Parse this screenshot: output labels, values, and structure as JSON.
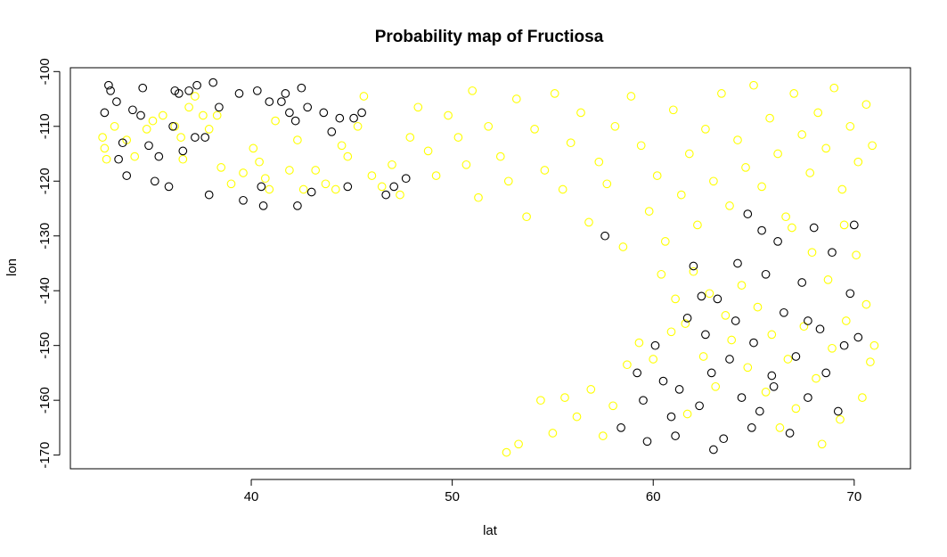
{
  "chart_data": {
    "type": "scatter",
    "title": "Probability map of Fructiosa",
    "xlabel": "lat",
    "ylabel": "lon",
    "xlim": [
      31.0,
      72.8
    ],
    "ylim": [
      -172.5,
      -99.3
    ],
    "xticks": [
      40,
      50,
      60,
      70
    ],
    "yticks": [
      -100,
      -110,
      -120,
      -130,
      -140,
      -150,
      -160,
      -170
    ],
    "grid": false,
    "marker": "open-circle",
    "series": [
      {
        "color": "#ffff00",
        "points": [
          [
            32.6,
            -112.0
          ],
          [
            32.7,
            -114.0
          ],
          [
            32.8,
            -116.0
          ],
          [
            33.2,
            -110.0
          ],
          [
            33.8,
            -112.5
          ],
          [
            34.2,
            -115.5
          ],
          [
            34.8,
            -110.5
          ],
          [
            35.1,
            -109.0
          ],
          [
            35.6,
            -108.0
          ],
          [
            36.2,
            -110.0
          ],
          [
            36.5,
            -112.0
          ],
          [
            36.6,
            -116.0
          ],
          [
            36.9,
            -106.5
          ],
          [
            37.2,
            -104.5
          ],
          [
            37.6,
            -108.0
          ],
          [
            37.9,
            -110.5
          ],
          [
            38.3,
            -108.0
          ],
          [
            38.5,
            -117.5
          ],
          [
            39.0,
            -120.5
          ],
          [
            39.6,
            -118.5
          ],
          [
            40.1,
            -114.0
          ],
          [
            40.4,
            -116.5
          ],
          [
            40.7,
            -119.5
          ],
          [
            40.9,
            -121.5
          ],
          [
            41.2,
            -109.0
          ],
          [
            41.9,
            -118.0
          ],
          [
            42.3,
            -112.5
          ],
          [
            42.6,
            -121.5
          ],
          [
            43.2,
            -118.0
          ],
          [
            43.7,
            -120.5
          ],
          [
            44.2,
            -121.5
          ],
          [
            44.5,
            -113.5
          ],
          [
            44.8,
            -115.5
          ],
          [
            45.3,
            -110.0
          ],
          [
            45.6,
            -104.5
          ],
          [
            46.0,
            -119.0
          ],
          [
            46.5,
            -121.0
          ],
          [
            47.0,
            -117.0
          ],
          [
            47.4,
            -122.5
          ],
          [
            47.9,
            -112.0
          ],
          [
            48.3,
            -106.5
          ],
          [
            48.8,
            -114.5
          ],
          [
            49.2,
            -119.0
          ],
          [
            49.8,
            -108.0
          ],
          [
            50.3,
            -112.0
          ],
          [
            50.7,
            -117.0
          ],
          [
            51.0,
            -103.5
          ],
          [
            51.3,
            -123.0
          ],
          [
            51.8,
            -110.0
          ],
          [
            52.4,
            -115.5
          ],
          [
            52.8,
            -120.0
          ],
          [
            53.2,
            -105.0
          ],
          [
            53.7,
            -126.5
          ],
          [
            54.1,
            -110.5
          ],
          [
            54.6,
            -118.0
          ],
          [
            55.1,
            -104.0
          ],
          [
            55.5,
            -121.5
          ],
          [
            55.9,
            -113.0
          ],
          [
            56.4,
            -107.5
          ],
          [
            56.8,
            -127.5
          ],
          [
            57.3,
            -116.5
          ],
          [
            57.7,
            -120.5
          ],
          [
            58.1,
            -110.0
          ],
          [
            58.5,
            -132.0
          ],
          [
            58.9,
            -104.5
          ],
          [
            59.4,
            -113.5
          ],
          [
            59.8,
            -125.5
          ],
          [
            60.2,
            -119.0
          ],
          [
            60.6,
            -131.0
          ],
          [
            61.0,
            -107.0
          ],
          [
            61.4,
            -122.5
          ],
          [
            61.8,
            -115.0
          ],
          [
            62.2,
            -128.0
          ],
          [
            62.6,
            -110.5
          ],
          [
            63.0,
            -120.0
          ],
          [
            63.4,
            -104.0
          ],
          [
            63.8,
            -124.5
          ],
          [
            64.2,
            -112.5
          ],
          [
            64.6,
            -117.5
          ],
          [
            65.0,
            -102.5
          ],
          [
            65.4,
            -121.0
          ],
          [
            65.8,
            -108.5
          ],
          [
            66.2,
            -115.0
          ],
          [
            66.6,
            -126.5
          ],
          [
            67.0,
            -104.0
          ],
          [
            67.4,
            -111.5
          ],
          [
            67.8,
            -118.5
          ],
          [
            68.2,
            -107.5
          ],
          [
            68.6,
            -114.0
          ],
          [
            69.0,
            -103.0
          ],
          [
            69.4,
            -121.5
          ],
          [
            69.8,
            -110.0
          ],
          [
            70.2,
            -116.5
          ],
          [
            70.6,
            -106.0
          ],
          [
            70.9,
            -113.5
          ],
          [
            60.4,
            -137.0
          ],
          [
            61.1,
            -141.5
          ],
          [
            61.6,
            -146.0
          ],
          [
            62.0,
            -136.5
          ],
          [
            62.8,
            -140.5
          ],
          [
            63.6,
            -144.5
          ],
          [
            64.4,
            -139.0
          ],
          [
            65.2,
            -143.0
          ],
          [
            65.9,
            -148.0
          ],
          [
            66.7,
            -152.5
          ],
          [
            67.5,
            -146.5
          ],
          [
            68.1,
            -156.0
          ],
          [
            68.9,
            -150.5
          ],
          [
            69.6,
            -145.5
          ],
          [
            70.4,
            -159.5
          ],
          [
            70.8,
            -153.0
          ],
          [
            69.3,
            -163.5
          ],
          [
            68.4,
            -168.0
          ],
          [
            67.1,
            -161.5
          ],
          [
            66.3,
            -165.0
          ],
          [
            65.6,
            -158.5
          ],
          [
            64.7,
            -154.0
          ],
          [
            63.9,
            -149.0
          ],
          [
            63.1,
            -157.5
          ],
          [
            62.5,
            -152.0
          ],
          [
            61.7,
            -162.5
          ],
          [
            60.9,
            -147.5
          ],
          [
            60.0,
            -152.5
          ],
          [
            59.3,
            -149.5
          ],
          [
            58.7,
            -153.5
          ],
          [
            58.0,
            -161.0
          ],
          [
            57.5,
            -166.5
          ],
          [
            56.9,
            -158.0
          ],
          [
            56.2,
            -163.0
          ],
          [
            55.6,
            -159.5
          ],
          [
            55.0,
            -166.0
          ],
          [
            54.4,
            -160.0
          ],
          [
            53.3,
            -168.0
          ],
          [
            52.7,
            -169.5
          ],
          [
            70.1,
            -133.5
          ],
          [
            69.5,
            -128.0
          ],
          [
            68.7,
            -138.0
          ],
          [
            67.9,
            -133.0
          ],
          [
            66.9,
            -128.5
          ],
          [
            70.6,
            -142.5
          ],
          [
            71.0,
            -150.0
          ]
        ]
      },
      {
        "color": "#000000",
        "points": [
          [
            32.7,
            -107.5
          ],
          [
            32.9,
            -102.5
          ],
          [
            33.0,
            -103.5
          ],
          [
            33.3,
            -105.5
          ],
          [
            33.4,
            -116.0
          ],
          [
            33.6,
            -113.0
          ],
          [
            33.8,
            -119.0
          ],
          [
            34.1,
            -107.0
          ],
          [
            34.5,
            -108.0
          ],
          [
            34.6,
            -103.0
          ],
          [
            34.9,
            -113.5
          ],
          [
            35.2,
            -120.0
          ],
          [
            35.4,
            -115.5
          ],
          [
            35.9,
            -121.0
          ],
          [
            36.1,
            -110.0
          ],
          [
            36.2,
            -103.5
          ],
          [
            36.4,
            -104.0
          ],
          [
            36.6,
            -114.5
          ],
          [
            36.9,
            -103.5
          ],
          [
            37.2,
            -112.0
          ],
          [
            37.3,
            -102.5
          ],
          [
            37.7,
            -112.0
          ],
          [
            37.9,
            -122.5
          ],
          [
            38.1,
            -102.0
          ],
          [
            38.4,
            -106.5
          ],
          [
            39.4,
            -104.0
          ],
          [
            39.6,
            -123.5
          ],
          [
            40.3,
            -103.5
          ],
          [
            40.5,
            -121.0
          ],
          [
            40.6,
            -124.5
          ],
          [
            40.9,
            -105.5
          ],
          [
            41.5,
            -105.5
          ],
          [
            41.7,
            -104.0
          ],
          [
            41.9,
            -107.5
          ],
          [
            42.2,
            -109.0
          ],
          [
            42.3,
            -124.5
          ],
          [
            42.5,
            -103.0
          ],
          [
            42.8,
            -106.5
          ],
          [
            43.0,
            -122.0
          ],
          [
            43.6,
            -107.5
          ],
          [
            44.0,
            -111.0
          ],
          [
            44.4,
            -108.5
          ],
          [
            44.8,
            -121.0
          ],
          [
            45.1,
            -108.5
          ],
          [
            45.5,
            -107.5
          ],
          [
            46.7,
            -122.5
          ],
          [
            47.1,
            -121.0
          ],
          [
            47.7,
            -119.5
          ],
          [
            57.6,
            -130.0
          ],
          [
            59.5,
            -160.0
          ],
          [
            58.4,
            -165.0
          ],
          [
            59.2,
            -155.0
          ],
          [
            59.7,
            -167.5
          ],
          [
            60.1,
            -150.0
          ],
          [
            60.5,
            -156.5
          ],
          [
            60.9,
            -163.0
          ],
          [
            61.3,
            -158.0
          ],
          [
            61.7,
            -145.0
          ],
          [
            62.0,
            -135.5
          ],
          [
            62.3,
            -161.0
          ],
          [
            62.6,
            -148.0
          ],
          [
            62.9,
            -155.0
          ],
          [
            63.2,
            -141.5
          ],
          [
            63.5,
            -167.0
          ],
          [
            63.8,
            -152.5
          ],
          [
            64.1,
            -145.5
          ],
          [
            64.4,
            -159.5
          ],
          [
            64.7,
            -126.0
          ],
          [
            65.0,
            -149.5
          ],
          [
            65.3,
            -162.0
          ],
          [
            65.6,
            -137.0
          ],
          [
            65.9,
            -155.5
          ],
          [
            66.2,
            -131.0
          ],
          [
            66.5,
            -144.0
          ],
          [
            66.8,
            -166.0
          ],
          [
            67.1,
            -152.0
          ],
          [
            67.4,
            -138.5
          ],
          [
            67.7,
            -159.5
          ],
          [
            68.0,
            -128.5
          ],
          [
            68.3,
            -147.0
          ],
          [
            68.6,
            -155.0
          ],
          [
            68.9,
            -133.0
          ],
          [
            69.2,
            -162.0
          ],
          [
            69.5,
            -150.0
          ],
          [
            69.8,
            -140.5
          ],
          [
            70.0,
            -128.0
          ],
          [
            70.2,
            -148.5
          ],
          [
            64.9,
            -165.0
          ],
          [
            63.0,
            -169.0
          ],
          [
            61.1,
            -166.5
          ],
          [
            66.0,
            -157.5
          ],
          [
            62.4,
            -141.0
          ],
          [
            64.2,
            -135.0
          ],
          [
            67.7,
            -145.5
          ],
          [
            65.4,
            -129.0
          ]
        ]
      }
    ]
  }
}
